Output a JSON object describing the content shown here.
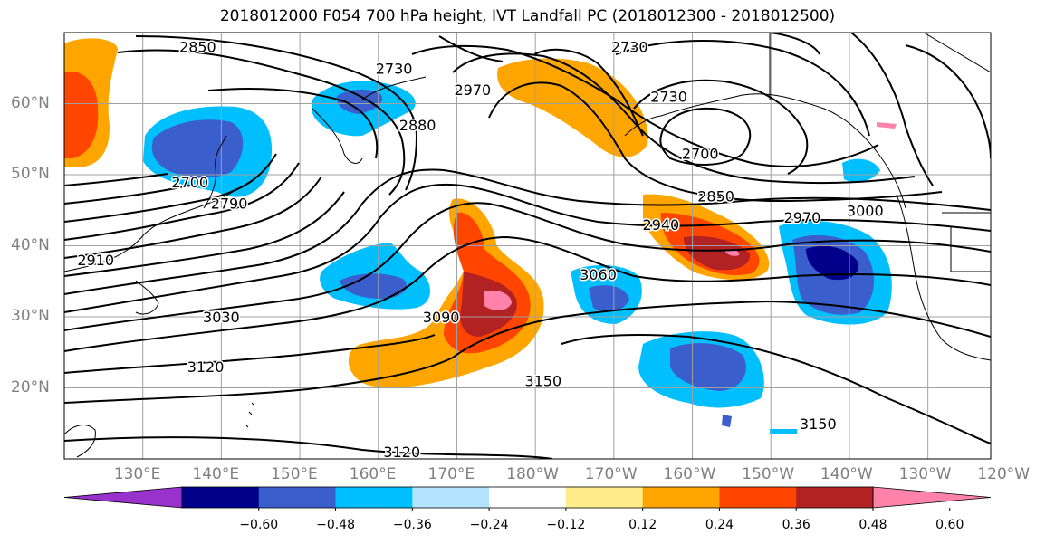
{
  "title": "2018012000 F054 700 hPa height, IVT Landfall PC (2018012300 - 2018012500)",
  "map": {
    "lon_range": [
      120,
      238
    ],
    "lat_range": [
      10,
      70
    ],
    "lon_labels": [
      "130°E",
      "140°E",
      "150°E",
      "160°E",
      "170°E",
      "180°W",
      "170°W",
      "160°W",
      "150°W",
      "140°W",
      "130°W",
      "120°W"
    ],
    "lat_labels": [
      "60°N",
      "50°N",
      "40°N",
      "30°N",
      "20°N"
    ],
    "grid": true,
    "contour_labels": [
      {
        "text": "2850",
        "lon": 137,
        "lat": 68
      },
      {
        "text": "2730",
        "lon": 162,
        "lat": 65
      },
      {
        "text": "2970",
        "lon": 172,
        "lat": 62
      },
      {
        "text": "2880",
        "lon": 165,
        "lat": 57
      },
      {
        "text": "2700",
        "lon": 136,
        "lat": 49
      },
      {
        "text": "2790",
        "lon": 141,
        "lat": 46
      },
      {
        "text": "2910",
        "lon": 124,
        "lat": 38
      },
      {
        "text": "3030",
        "lon": 140,
        "lat": 30
      },
      {
        "text": "3120",
        "lon": 138,
        "lat": 23
      },
      {
        "text": "3090",
        "lon": 168,
        "lat": 30
      },
      {
        "text": "3060",
        "lon": 188,
        "lat": 36
      },
      {
        "text": "2940",
        "lon": 196,
        "lat": 43
      },
      {
        "text": "2850",
        "lon": 203,
        "lat": 47
      },
      {
        "text": "2970",
        "lon": 214,
        "lat": 44
      },
      {
        "text": "3000",
        "lon": 222,
        "lat": 45
      },
      {
        "text": "2700",
        "lon": 201,
        "lat": 53
      },
      {
        "text": "2730",
        "lon": 197,
        "lat": 61
      },
      {
        "text": "2730",
        "lon": 192,
        "lat": 68
      },
      {
        "text": "3150",
        "lon": 181,
        "lat": 21
      },
      {
        "text": "3150",
        "lon": 216,
        "lat": 15
      },
      {
        "text": "3120",
        "lon": 163,
        "lat": 11
      }
    ]
  },
  "colorbar": {
    "colors": [
      "#9932cc",
      "#00008b",
      "#3a5fcd",
      "#00bfff",
      "#b2e3ff",
      "#ffffff",
      "#ffec8b",
      "#ffa500",
      "#ff4500",
      "#b22222",
      "#ff82ab"
    ],
    "tick_labels": [
      "−0.60",
      "−0.48",
      "−0.36",
      "−0.24",
      "−0.12",
      "0.12",
      "0.24",
      "0.36",
      "0.48",
      "0.60"
    ]
  }
}
